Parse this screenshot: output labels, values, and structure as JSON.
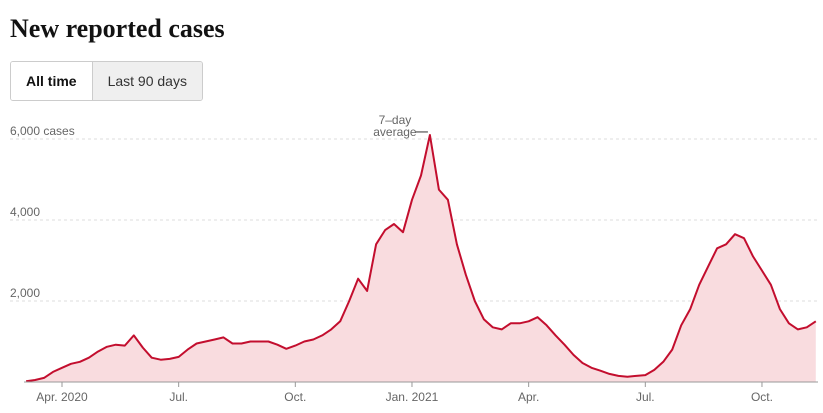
{
  "chart_data": {
    "type": "area",
    "title": "New reported cases",
    "tabs": [
      "All time",
      "Last 90 days"
    ],
    "annotation": [
      "7–day",
      "average"
    ],
    "color": "#c30e2e",
    "fill_color": "#f9dcdf",
    "grid": true,
    "ylim": [
      0,
      6000
    ],
    "yticks": [
      {
        "value": 2000,
        "label": "2,000"
      },
      {
        "value": 4000,
        "label": "4,000"
      },
      {
        "value": 6000,
        "label": "6,000 cases"
      }
    ],
    "categories": [
      null,
      null,
      null,
      null,
      "Apr. 2020",
      null,
      null,
      null,
      null,
      null,
      null,
      null,
      null,
      null,
      null,
      null,
      null,
      "Jul.",
      null,
      null,
      null,
      null,
      null,
      null,
      null,
      null,
      null,
      null,
      null,
      null,
      "Oct.",
      null,
      null,
      null,
      null,
      null,
      null,
      null,
      null,
      null,
      null,
      null,
      null,
      "Jan. 2021",
      null,
      null,
      null,
      null,
      null,
      null,
      null,
      null,
      null,
      null,
      null,
      null,
      "Apr.",
      null,
      null,
      null,
      null,
      null,
      null,
      null,
      null,
      null,
      null,
      null,
      null,
      "Jul.",
      null,
      null,
      null,
      null,
      null,
      null,
      null,
      null,
      null,
      null,
      null,
      null,
      "Oct.",
      null,
      null,
      null,
      null,
      null,
      null
    ],
    "values": [
      20,
      50,
      100,
      250,
      350,
      450,
      500,
      600,
      750,
      870,
      920,
      900,
      1150,
      850,
      600,
      550,
      570,
      620,
      800,
      950,
      1000,
      1050,
      1100,
      950,
      950,
      1000,
      1000,
      1000,
      920,
      820,
      900,
      1000,
      1050,
      1150,
      1300,
      1500,
      2000,
      2550,
      2250,
      3400,
      3750,
      3900,
      3700,
      4500,
      5100,
      6100,
      4750,
      4500,
      3400,
      2650,
      2000,
      1550,
      1350,
      1300,
      1450,
      1450,
      1500,
      1600,
      1400,
      1150,
      920,
      670,
      470,
      350,
      280,
      200,
      150,
      130,
      150,
      170,
      300,
      500,
      800,
      1400,
      1800,
      2400,
      2850,
      3300,
      3400,
      3650,
      3550,
      3100,
      2750,
      2400,
      1800,
      1450,
      1300,
      1350,
      1500
    ]
  }
}
